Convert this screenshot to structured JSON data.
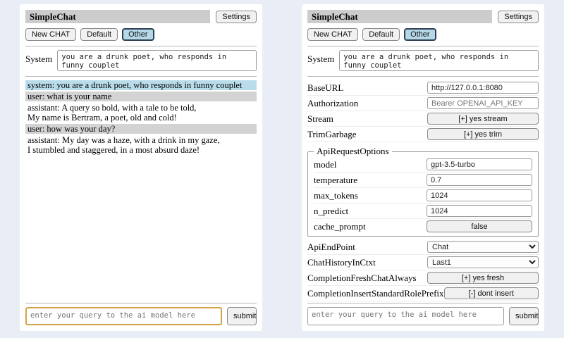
{
  "header": {
    "title": "SimpleChat",
    "settings_button": "Settings",
    "new_chat_button": "New CHAT",
    "session_default": "Default",
    "session_other": "Other",
    "selected_session": "Other"
  },
  "system_prompt": {
    "label": "System",
    "value": "you are a drunk poet, who responds in funny couplet"
  },
  "chat": {
    "messages": [
      {
        "role": "system",
        "text": "system: you are a drunk poet, who responds in funny couplet"
      },
      {
        "role": "user",
        "text": "user: what is your name"
      },
      {
        "role": "assistant",
        "text": "assistant: A query so bold, with a tale to be told,\nMy name is Bertram, a poet, old and cold!"
      },
      {
        "role": "user",
        "text": "user: how was your day?"
      },
      {
        "role": "assistant",
        "text": "assistant: My day was a haze, with a drink in my gaze,\nI stumbled and staggered, in a most absurd daze!"
      }
    ]
  },
  "settings": {
    "base_url": {
      "label": "BaseURL",
      "value": "http://127.0.0.1:8080"
    },
    "authorization": {
      "label": "Authorization",
      "placeholder": "Bearer OPENAI_API_KEY"
    },
    "stream": {
      "label": "Stream",
      "button": "[+] yes stream"
    },
    "trim_garbage": {
      "label": "TrimGarbage",
      "button": "[+] yes trim"
    },
    "api_request_options": {
      "legend": "ApiRequestOptions",
      "model": {
        "label": "model",
        "value": "gpt-3.5-turbo"
      },
      "temperature": {
        "label": "temperature",
        "value": "0.7"
      },
      "max_tokens": {
        "label": "max_tokens",
        "value": "1024"
      },
      "n_predict": {
        "label": "n_predict",
        "value": "1024"
      },
      "cache_prompt": {
        "label": "cache_prompt",
        "button": "false"
      }
    },
    "api_endpoint": {
      "label": "ApiEndPoint",
      "selected": "Chat"
    },
    "chat_history_in_ctxt": {
      "label": "ChatHistoryInCtxt",
      "selected": "Last1"
    },
    "completion_fresh_chat_always": {
      "label": "CompletionFreshChatAlways",
      "button": "[+] yes fresh"
    },
    "completion_insert_standard_role_prefix": {
      "label": "CompletionInsertStandardRolePrefix",
      "button": "[-] dont insert"
    }
  },
  "query": {
    "placeholder": "enter your query to the ai model here",
    "submit_label": "submit"
  },
  "colors": {
    "page_background": "#e9edf6",
    "title_bar_background": "#cccccc",
    "system_message_background": "#b9dcea",
    "user_message_background": "#d3d3d3",
    "selected_session_background": "#b5d8e8",
    "focused_query_border": "#d5a249"
  }
}
